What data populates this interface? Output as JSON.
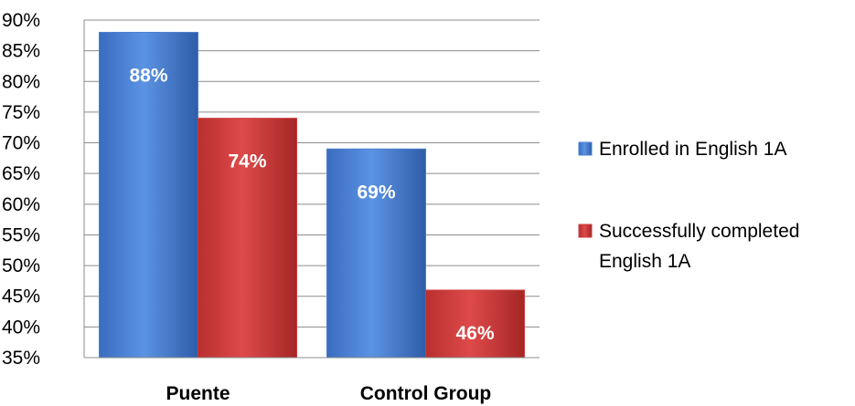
{
  "chart_data": {
    "type": "bar",
    "categories": [
      "Puente",
      "Control Group"
    ],
    "series": [
      {
        "name": "Enrolled in English 1A",
        "values": [
          88,
          69
        ],
        "labels": [
          "88%",
          "69%"
        ],
        "color": "#4a7fd0"
      },
      {
        "name": "Successfully completed English 1A",
        "values": [
          74,
          46
        ],
        "labels": [
          "74%",
          "46%"
        ],
        "color": "#cc3b3b"
      }
    ],
    "ylim": [
      35,
      90
    ],
    "yticks": [
      "35%",
      "40%",
      "45%",
      "50%",
      "55%",
      "60%",
      "65%",
      "70%",
      "75%",
      "80%",
      "85%",
      "90%"
    ],
    "legend": {
      "position": "right",
      "entries": [
        {
          "lines": [
            "Enrolled in English 1A"
          ]
        },
        {
          "lines": [
            "Successfully completed",
            "English 1A"
          ]
        }
      ]
    },
    "grid": true
  }
}
